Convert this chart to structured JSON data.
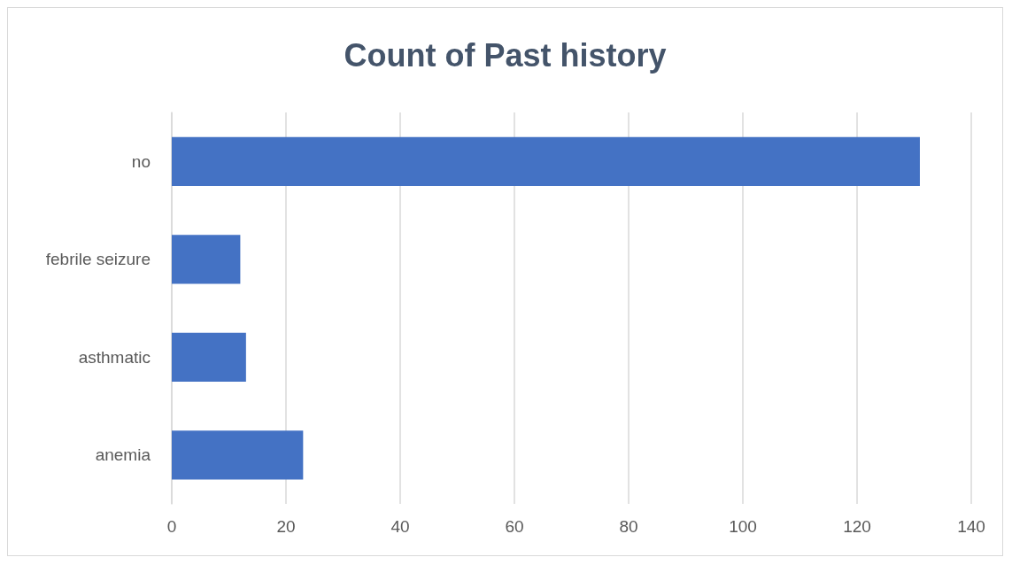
{
  "chart_data": {
    "type": "bar",
    "orientation": "horizontal",
    "title": "Count of Past history",
    "categories": [
      "no",
      "febrile seizure",
      "asthmatic",
      "anemia"
    ],
    "values": [
      131,
      12,
      13,
      23
    ],
    "color": "#4472c4",
    "xlim": [
      0,
      140
    ],
    "xticks": [
      0,
      20,
      40,
      60,
      80,
      100,
      120,
      140
    ],
    "grid": "x"
  }
}
